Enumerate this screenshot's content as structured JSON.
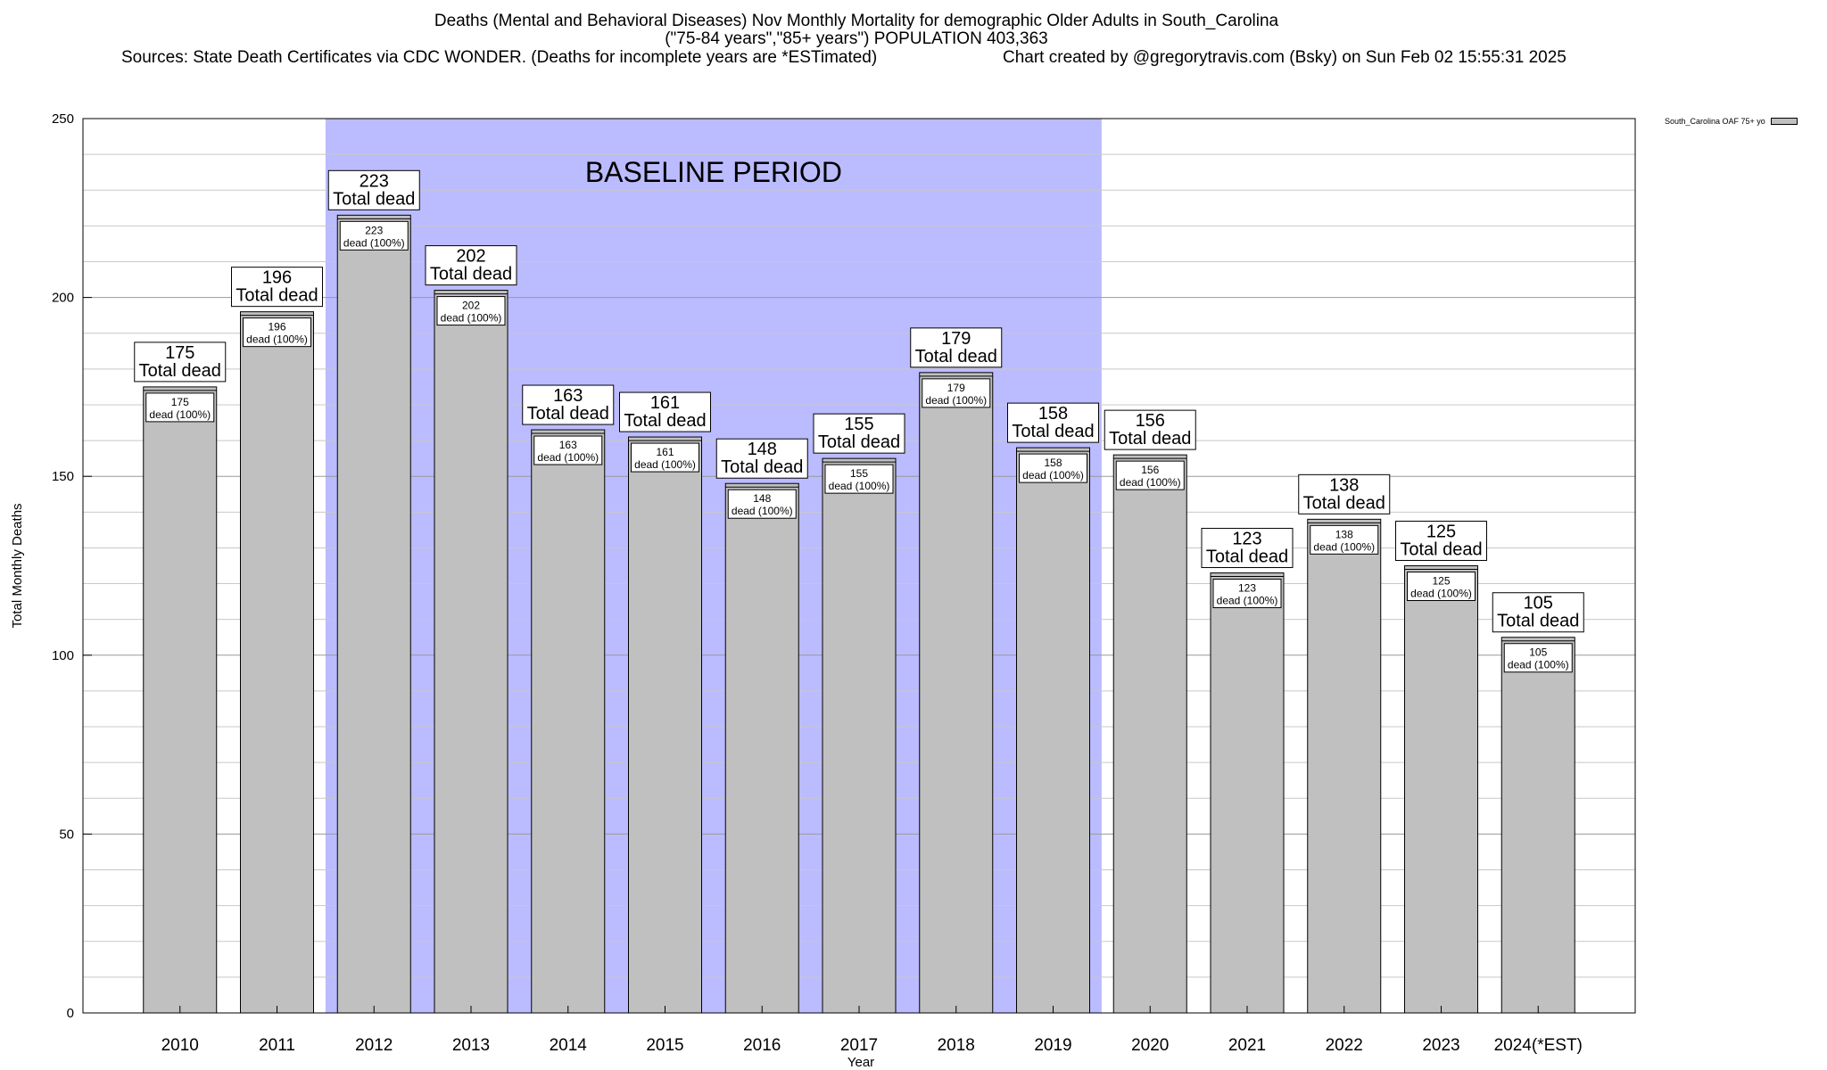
{
  "header": {
    "title_line1": "Deaths (Mental and Behavioral Diseases) Nov Monthly Mortality for demographic Older Adults in South_Carolina",
    "title_line2": "(\"75-84 years\",\"85+ years\") POPULATION 403,363",
    "sources": "Sources: State Death Certificates via CDC WONDER. (Deaths for incomplete years are *ESTimated)",
    "credit": "Chart created by @gregorytravis.com (Bsky) on Sun Feb 02 15:55:31 2025"
  },
  "legend": {
    "label": "South_Carolina OAF 75+ yo"
  },
  "chart_data": {
    "type": "bar",
    "xlabel": "Year",
    "ylabel": "Total Monthly Deaths",
    "ylim": [
      0,
      250
    ],
    "yticks": [
      0,
      50,
      100,
      150,
      200,
      250
    ],
    "minor_grid_step": 10,
    "grid": true,
    "legend_position": "top-right, outside plot",
    "categories": [
      "2010",
      "2011",
      "2012",
      "2013",
      "2014",
      "2015",
      "2016",
      "2017",
      "2018",
      "2019",
      "2020",
      "2021",
      "2022",
      "2023",
      "2024(*EST)"
    ],
    "series": [
      {
        "name": "South_Carolina OAF 75+ yo",
        "values": [
          175,
          196,
          223,
          202,
          163,
          161,
          148,
          155,
          179,
          158,
          156,
          123,
          138,
          125,
          105
        ]
      }
    ],
    "total_label_suffix": "Total dead",
    "inner_label_suffix": "dead (100%)",
    "baseline_period": {
      "label": "BASELINE PERIOD",
      "from": "2012",
      "to": "2019",
      "color": "#bbbbff"
    },
    "bar_color": "#c0c0c0"
  }
}
